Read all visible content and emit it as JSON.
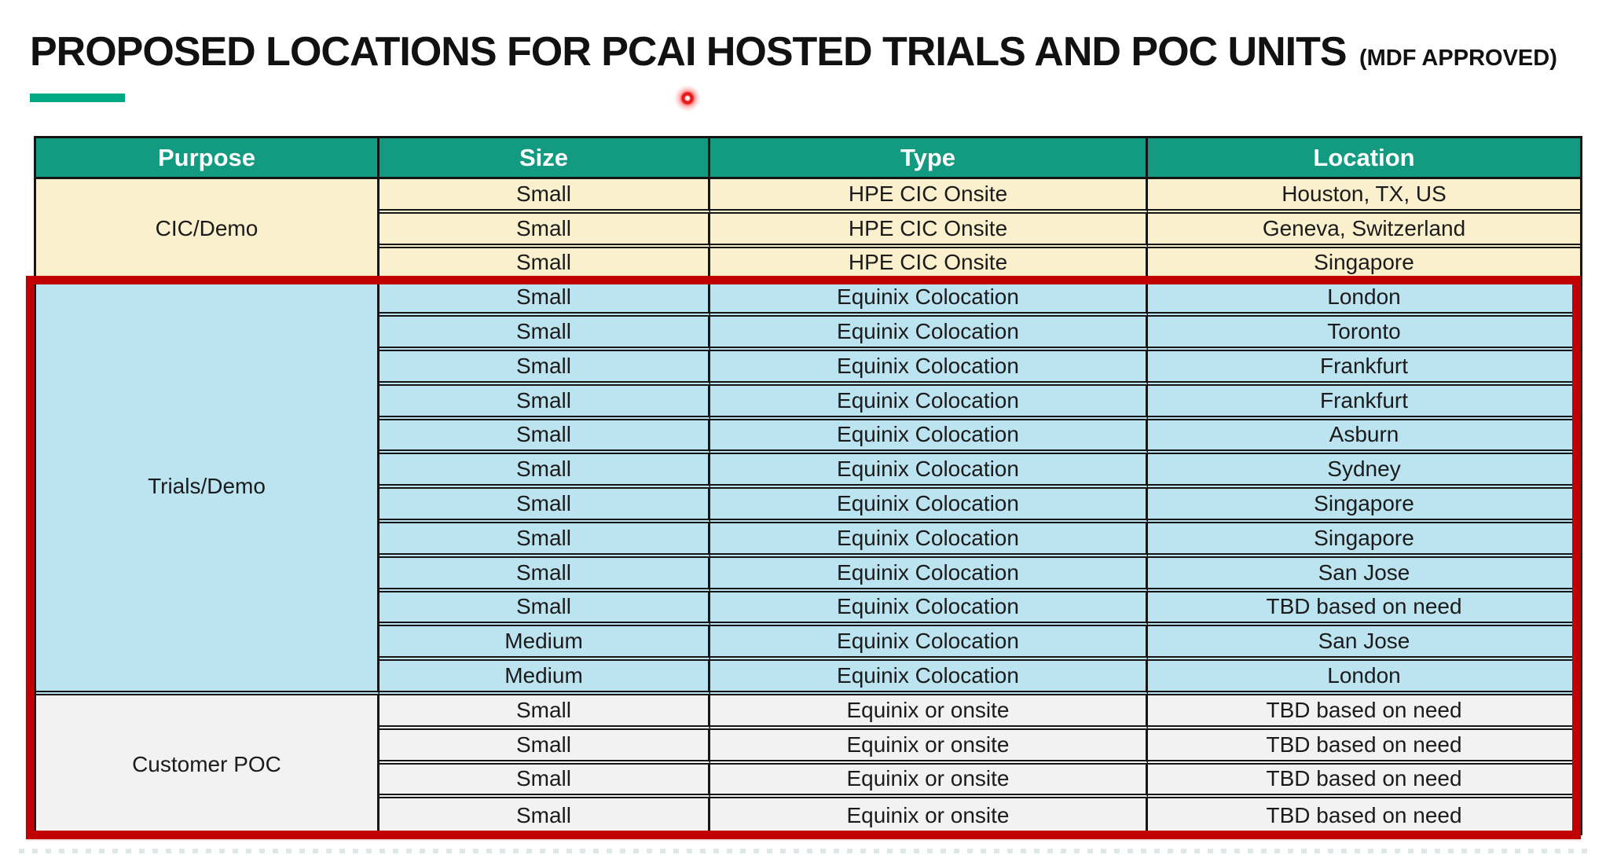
{
  "page": {
    "title": "PROPOSED LOCATIONS FOR PCAI HOSTED TRIALS AND POC UNITS",
    "title_suffix": "(MDF APPROVED)",
    "accent_color": "#01A982",
    "annotation_color": "#C00000",
    "icons": {
      "cursor": "laser-pointer-dot"
    }
  },
  "table": {
    "header_bg": "#129B80",
    "header_text_color": "#FFFFFF",
    "border_color": "#161616",
    "headers": [
      "Purpose",
      "Size",
      "Type",
      "Location"
    ],
    "sections": [
      {
        "purpose": "CIC/Demo",
        "bg": "#FAF0CD",
        "rows": [
          {
            "size": "Small",
            "type": "HPE CIC Onsite",
            "location": "Houston, TX, US"
          },
          {
            "size": "Small",
            "type": "HPE CIC Onsite",
            "location": "Geneva, Switzerland"
          },
          {
            "size": "Small",
            "type": "HPE CIC Onsite",
            "location": "Singapore"
          }
        ]
      },
      {
        "purpose": "Trials/Demo",
        "bg": "#BCE4F0",
        "rows": [
          {
            "size": "Small",
            "type": "Equinix Colocation",
            "location": "London"
          },
          {
            "size": "Small",
            "type": "Equinix Colocation",
            "location": "Toronto"
          },
          {
            "size": "Small",
            "type": "Equinix Colocation",
            "location": "Frankfurt"
          },
          {
            "size": "Small",
            "type": "Equinix Colocation",
            "location": "Frankfurt"
          },
          {
            "size": "Small",
            "type": "Equinix Colocation",
            "location": "Asburn"
          },
          {
            "size": "Small",
            "type": "Equinix Colocation",
            "location": "Sydney"
          },
          {
            "size": "Small",
            "type": "Equinix Colocation",
            "location": "Singapore"
          },
          {
            "size": "Small",
            "type": "Equinix Colocation",
            "location": "Singapore"
          },
          {
            "size": "Small",
            "type": "Equinix Colocation",
            "location": "San Jose"
          },
          {
            "size": "Small",
            "type": "Equinix Colocation",
            "location": "TBD based on need"
          },
          {
            "size": "Medium",
            "type": "Equinix Colocation",
            "location": "San Jose"
          },
          {
            "size": "Medium",
            "type": "Equinix Colocation",
            "location": "London"
          }
        ]
      },
      {
        "purpose": "Customer POC",
        "bg": "#F2F2F2",
        "rows": [
          {
            "size": "Small",
            "type": "Equinix or onsite",
            "location": "TBD based on need"
          },
          {
            "size": "Small",
            "type": "Equinix or onsite",
            "location": "TBD based on need"
          },
          {
            "size": "Small",
            "type": "Equinix or onsite",
            "location": "TBD based on need"
          },
          {
            "size": "Small",
            "type": "Equinix or onsite",
            "location": "TBD based on need"
          }
        ]
      }
    ]
  }
}
